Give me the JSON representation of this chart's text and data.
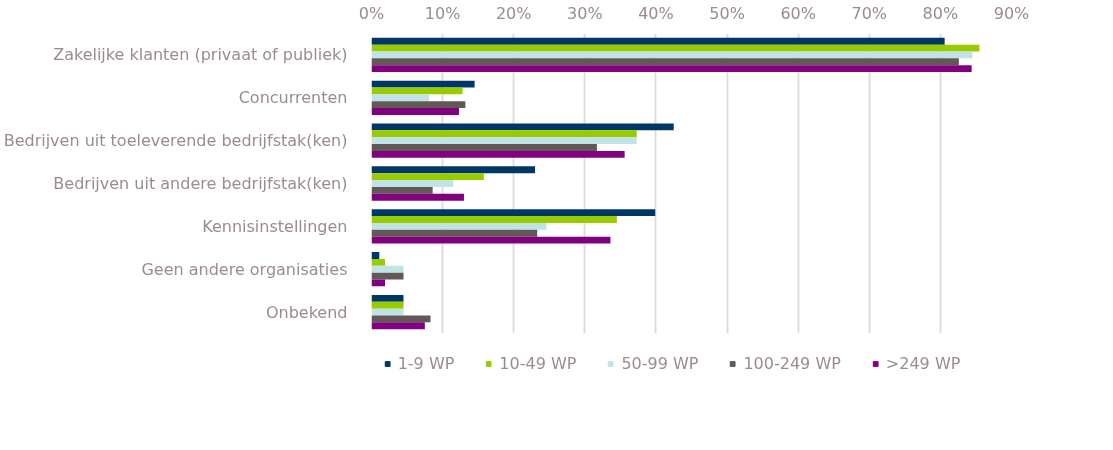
{
  "chart_data": {
    "type": "bar",
    "orientation": "horizontal",
    "categories": [
      "Zakelijke klanten (privaat of publiek)",
      "Concurrenten",
      "Bedrijven uit toeleverende bedrijfstak(ken)",
      "Bedrijven uit andere bedrijfstak(ken)",
      "Kennisinstellingen",
      "Geen andere organisaties",
      "Onbekend"
    ],
    "series": [
      {
        "name": "1-9 WP",
        "color": "#003865",
        "values": [
          80.6,
          14.5,
          42.5,
          23.0,
          39.9,
          1.1,
          4.5
        ]
      },
      {
        "name": "10-49 WP",
        "color": "#99cc00",
        "values": [
          85.5,
          12.8,
          37.3,
          15.8,
          34.5,
          1.9,
          4.5
        ]
      },
      {
        "name": "50-99 WP",
        "color": "#bfe3e6",
        "values": [
          84.5,
          8.1,
          37.3,
          11.5,
          24.6,
          4.5,
          4.5
        ]
      },
      {
        "name": "100-249 WP",
        "color": "#625856",
        "values": [
          82.6,
          13.2,
          31.7,
          8.6,
          23.3,
          4.5,
          8.3
        ]
      },
      {
        "name": ">249 WP",
        "color": "#820080",
        "values": [
          84.4,
          12.3,
          35.6,
          13.0,
          33.6,
          1.9,
          7.5
        ]
      }
    ],
    "xlim": [
      0,
      90
    ],
    "xticks": [
      {
        "value": 0,
        "label": "0%"
      },
      {
        "value": 10,
        "label": "10%"
      },
      {
        "value": 20,
        "label": "20%"
      },
      {
        "value": 30,
        "label": "30%"
      },
      {
        "value": 40,
        "label": "40%"
      },
      {
        "value": 50,
        "label": "50%"
      },
      {
        "value": 60,
        "label": "60%"
      },
      {
        "value": 70,
        "label": "70%"
      },
      {
        "value": 80,
        "label": "80%"
      },
      {
        "value": 90,
        "label": "90%"
      }
    ],
    "grid": "x",
    "legend": "bottom"
  }
}
